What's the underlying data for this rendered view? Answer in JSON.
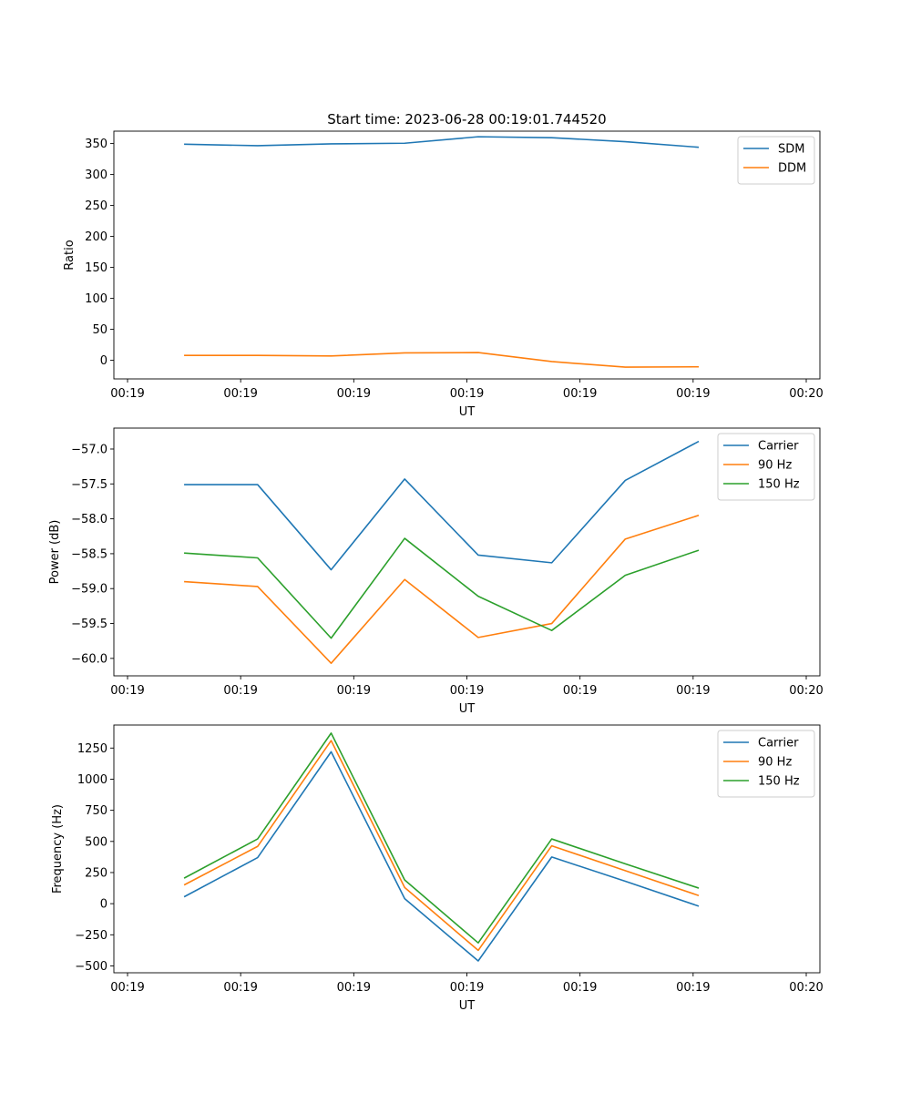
{
  "figure_title": "Start time: 2023-06-28 00:19:01.744520",
  "chart_data": [
    {
      "type": "line",
      "title": "Start time: 2023-06-28 00:19:01.744520",
      "xlabel": "UT",
      "ylabel": "Ratio",
      "xlim": [
        0,
        6
      ],
      "x_ticks": [
        0,
        1,
        2,
        3,
        4,
        5,
        6
      ],
      "x_tick_labels": [
        "00:19",
        "00:19",
        "00:19",
        "00:19",
        "00:19",
        "00:19",
        "00:20"
      ],
      "ylim": [
        -30,
        370
      ],
      "y_ticks": [
        0,
        50,
        100,
        150,
        200,
        250,
        300,
        350
      ],
      "y_tick_labels": [
        "0",
        "50",
        "100",
        "150",
        "200",
        "250",
        "300",
        "350"
      ],
      "x": [
        0.5,
        1.15,
        1.8,
        2.45,
        3.1,
        3.75,
        4.4,
        5.05
      ],
      "series": [
        {
          "name": "SDM",
          "color": "#1f77b4",
          "values": [
            349,
            346.5,
            349.5,
            350.5,
            361,
            359.5,
            353,
            344
          ]
        },
        {
          "name": "DDM",
          "color": "#ff7f0e",
          "values": [
            8,
            8,
            7,
            12,
            12.5,
            -2,
            -11,
            -10.5
          ]
        }
      ],
      "legend_position": "top-right",
      "grid": false
    },
    {
      "type": "line",
      "xlabel": "UT",
      "ylabel": "Power (dB)",
      "xlim": [
        0,
        6
      ],
      "x_ticks": [
        0,
        1,
        2,
        3,
        4,
        5,
        6
      ],
      "x_tick_labels": [
        "00:19",
        "00:19",
        "00:19",
        "00:19",
        "00:19",
        "00:19",
        "00:20"
      ],
      "ylim": [
        -60.25,
        -56.7
      ],
      "y_ticks": [
        -60.0,
        -59.5,
        -59.0,
        -58.5,
        -58.0,
        -57.5,
        -57.0
      ],
      "y_tick_labels": [
        "−60.0",
        "−59.5",
        "−59.0",
        "−58.5",
        "−58.0",
        "−57.5",
        "−57.0"
      ],
      "x": [
        0.5,
        1.15,
        1.8,
        2.45,
        3.1,
        3.75,
        4.4,
        5.05
      ],
      "series": [
        {
          "name": "Carrier",
          "color": "#1f77b4",
          "values": [
            -57.51,
            -57.51,
            -58.73,
            -57.43,
            -58.52,
            -58.63,
            -57.45,
            -56.89
          ]
        },
        {
          "name": "90 Hz",
          "color": "#ff7f0e",
          "values": [
            -58.9,
            -58.97,
            -60.07,
            -58.87,
            -59.7,
            -59.5,
            -58.29,
            -57.95
          ]
        },
        {
          "name": "150 Hz",
          "color": "#2ca02c",
          "values": [
            -58.49,
            -58.56,
            -59.71,
            -58.28,
            -59.11,
            -59.6,
            -58.81,
            -58.45
          ]
        }
      ],
      "legend_position": "top-right",
      "grid": false
    },
    {
      "type": "line",
      "xlabel": "UT",
      "ylabel": "Frequency (Hz)",
      "xlim": [
        0,
        6
      ],
      "x_ticks": [
        0,
        1,
        2,
        3,
        4,
        5,
        6
      ],
      "x_tick_labels": [
        "00:19",
        "00:19",
        "00:19",
        "00:19",
        "00:19",
        "00:19",
        "00:20"
      ],
      "ylim": [
        -555,
        1435
      ],
      "y_ticks": [
        -500,
        -250,
        0,
        250,
        500,
        750,
        1000,
        1250
      ],
      "y_tick_labels": [
        "−500",
        "−250",
        "0",
        "250",
        "500",
        "750",
        "1000",
        "1250"
      ],
      "x": [
        0.5,
        1.15,
        1.8,
        2.45,
        3.1,
        3.75,
        4.4,
        5.05
      ],
      "series": [
        {
          "name": "Carrier",
          "color": "#1f77b4",
          "values": [
            55,
            370,
            1220,
            40,
            -460,
            375,
            180,
            -20
          ]
        },
        {
          "name": "90 Hz",
          "color": "#ff7f0e",
          "values": [
            150,
            460,
            1310,
            130,
            -375,
            465,
            265,
            65
          ]
        },
        {
          "name": "150 Hz",
          "color": "#2ca02c",
          "values": [
            205,
            520,
            1370,
            190,
            -315,
            520,
            320,
            125
          ]
        }
      ],
      "legend_position": "top-right",
      "grid": false
    }
  ]
}
